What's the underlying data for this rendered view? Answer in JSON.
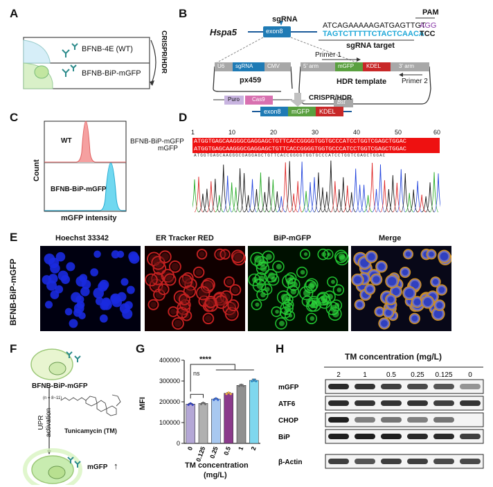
{
  "panel_labels": {
    "a": "A",
    "b": "B",
    "c": "C",
    "d": "D",
    "e": "E",
    "f": "F",
    "g": "G",
    "h": "H"
  },
  "panel_a": {
    "wt_label": "BFNB-4E (WT)",
    "edited_label": "BFNB-BiP-mGFP",
    "method_label": "CRISPR/HDR"
  },
  "panel_b": {
    "gene": "Hspa5",
    "sgrna": "sgRNA",
    "pam_title": "PAM",
    "top_strand": "ATCAGAAAAAGATGAGTTGT",
    "pam_seq": "AGG",
    "target_strand": "TAGTCTTTTTCTACTCAACA",
    "target_tail": "TCC",
    "sgrna_target": "sgRNA target",
    "exon": "exon8",
    "plasmid1": {
      "name": "px459",
      "parts": [
        "U6",
        "sgRNA",
        "CMV",
        "Puro",
        "Cas9"
      ]
    },
    "plasmid2": {
      "name": "HDR template",
      "parts": [
        "5' arm",
        "mGFP",
        "KDEL",
        "3' arm",
        "Bst"
      ]
    },
    "primer1": "Primer 1",
    "primer2": "Primer 2",
    "method": "CRISPR/HDR",
    "result": [
      "exon8",
      "mGFP",
      "KDEL"
    ]
  },
  "panel_c": {
    "ylabel": "Count",
    "xlabel": "mGFP intensity",
    "wt": "WT",
    "edited": "BFNB-BiP-mGFP",
    "colors": {
      "wt": "#f08080",
      "edited": "#3cc8e8"
    }
  },
  "panel_d": {
    "ruler": [
      "1",
      "10",
      "20",
      "30",
      "40",
      "50",
      "60"
    ],
    "row1_label": "BFNB-BiP-mGFP",
    "row2_label": "mGFP",
    "seq": "ATGGTGAGCAAGGGCGAGGAGCTGTTCACCGGGGTGGTGCCCATCCTGGTCGAGCTGGAC"
  },
  "panel_e": {
    "side_label": "BFNB-BiP-mGFP",
    "channels": [
      "Hoechst 33342",
      "ER Tracker RED",
      "BiP-mGFP",
      "Merge"
    ]
  },
  "panel_f": {
    "top": "BFNB-BiP-mGFP",
    "arrow": "UPR activation",
    "n_label": "(n = 8~11)",
    "drug": "Tunicamycin (TM)",
    "result": "mGFP",
    "result_arrow": "↑"
  },
  "panel_g": {
    "ylabel": "MFI",
    "xlabel": "TM concentration",
    "xlabel_unit": "(mg/L)",
    "ns": "ns",
    "sig": "****"
  },
  "panel_h": {
    "title": "TM concentration (mg/L)",
    "concentrations": [
      "2",
      "1",
      "0.5",
      "0.25",
      "0.125",
      "0"
    ],
    "rows": [
      "mGFP",
      "ATF6",
      "CHOP",
      "BiP",
      "β-Actin"
    ],
    "band_intensity": {
      "mGFP": [
        0.9,
        0.85,
        0.8,
        0.75,
        0.7,
        0.4
      ],
      "ATF6": [
        0.9,
        0.85,
        0.85,
        0.85,
        0.8,
        0.85
      ],
      "CHOP": [
        0.95,
        0.5,
        0.55,
        0.5,
        0.55,
        0.0
      ],
      "BiP": [
        0.95,
        0.95,
        0.95,
        0.9,
        0.9,
        0.8
      ],
      "β-Actin": [
        0.8,
        0.7,
        0.8,
        0.8,
        0.75,
        0.75
      ]
    }
  },
  "chart_data": {
    "type": "bar",
    "categories": [
      "0",
      "0.125",
      "0.25",
      "0.5",
      "1",
      "2"
    ],
    "values": [
      189000,
      192000,
      213000,
      241000,
      279000,
      303000
    ],
    "errors": [
      3000,
      3000,
      3000,
      3000,
      4000,
      6000
    ],
    "colors": [
      "#b4a7d6",
      "#b0b0b0",
      "#a8c8f0",
      "#8b3a8b",
      "#909090",
      "#7fd7ee"
    ],
    "point_colors": [
      "#3040c0",
      "#707070",
      "#3060d0",
      "#f0b040",
      "#707070",
      "#2080c0"
    ],
    "title": "",
    "xlabel": "TM concentration",
    "ylabel": "MFI",
    "ylim": [
      0,
      400000
    ],
    "yticks": [
      "0",
      "100000",
      "200000",
      "300000",
      "400000"
    ]
  }
}
